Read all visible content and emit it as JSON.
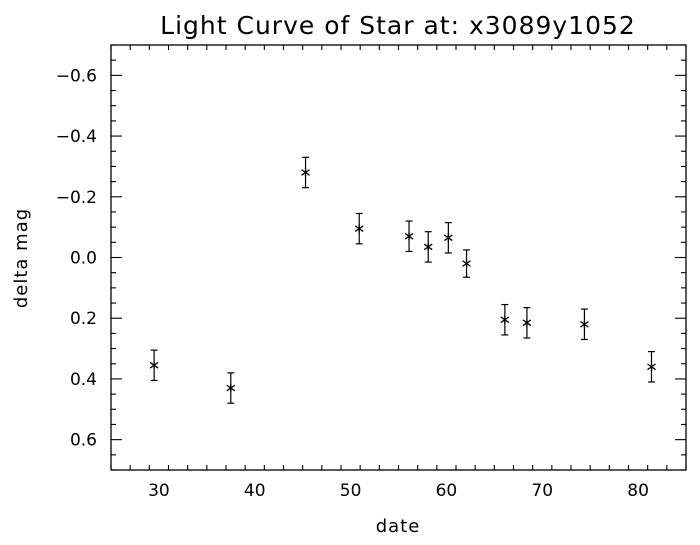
{
  "chart_data": {
    "type": "scatter",
    "title": "Light Curve of Star at: x3089y1052",
    "xlabel": "date",
    "ylabel": "delta mag",
    "xlim": [
      25,
      85
    ],
    "ylim": [
      0.7,
      -0.7
    ],
    "y_inverted": true,
    "x_ticks": [
      30,
      40,
      50,
      60,
      70,
      80
    ],
    "x_tick_labels": [
      "30",
      "40",
      "50",
      "60",
      "70",
      "80"
    ],
    "y_ticks": [
      -0.6,
      -0.4,
      -0.2,
      0.0,
      0.2,
      0.4,
      0.6
    ],
    "y_tick_labels": [
      "−0.6",
      "−0.4",
      "−0.2",
      "0.0",
      "0.2",
      "0.4",
      "0.6"
    ],
    "marker": "asterisk",
    "grid": false,
    "points": [
      {
        "x": 29.5,
        "y": 0.355,
        "err": 0.05
      },
      {
        "x": 37.5,
        "y": 0.43,
        "err": 0.05
      },
      {
        "x": 45.3,
        "y": -0.28,
        "err": 0.05
      },
      {
        "x": 50.9,
        "y": -0.095,
        "err": 0.05
      },
      {
        "x": 56.1,
        "y": -0.07,
        "err": 0.05
      },
      {
        "x": 58.1,
        "y": -0.035,
        "err": 0.05
      },
      {
        "x": 60.2,
        "y": -0.065,
        "err": 0.05
      },
      {
        "x": 62.1,
        "y": 0.02,
        "err": 0.045
      },
      {
        "x": 66.1,
        "y": 0.205,
        "err": 0.05
      },
      {
        "x": 68.4,
        "y": 0.215,
        "err": 0.05
      },
      {
        "x": 74.4,
        "y": 0.22,
        "err": 0.05
      },
      {
        "x": 81.4,
        "y": 0.36,
        "err": 0.05
      }
    ]
  }
}
